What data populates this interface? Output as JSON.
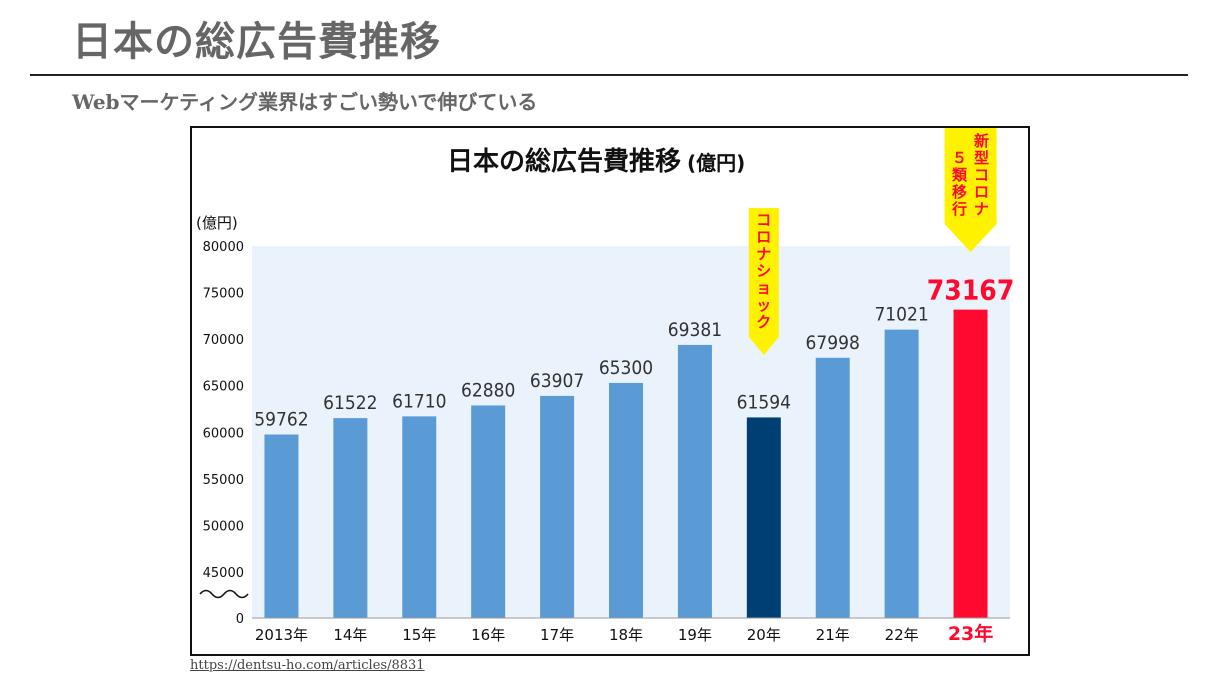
{
  "slide": {
    "title": "日本の総広告費推移",
    "subtitle": "Webマーケティング業界はすごい勢いで伸びている",
    "source": "https://dentsu-ho.com/articles/8831"
  },
  "chart_data": {
    "type": "bar",
    "title": "日本の総広告費推移",
    "title_unit": "(億円)",
    "ylabel": "(億円)",
    "ylim": [
      40000,
      80000
    ],
    "yticks": [
      0,
      45000,
      50000,
      55000,
      60000,
      65000,
      70000,
      75000,
      80000
    ],
    "axis_break": true,
    "categories": [
      "2013年",
      "14年",
      "15年",
      "16年",
      "17年",
      "18年",
      "19年",
      "20年",
      "21年",
      "22年",
      "23年"
    ],
    "series": [
      {
        "values": [
          59762,
          61522,
          61710,
          62880,
          63907,
          65300,
          69381,
          61594,
          67998,
          71021,
          73167
        ]
      }
    ],
    "colors": {
      "default": "#5b9bd5",
      "covid": "#003f73",
      "latest": "#ff0a2e",
      "plot_bg": "#eaf3fc",
      "callout": "#fff200"
    },
    "highlight": {
      "2020": "covid",
      "2023": "latest"
    },
    "annotations": [
      {
        "category_index": 7,
        "text": "コロナショック"
      },
      {
        "category_index": 10,
        "text": "新型コロナ５類移行"
      }
    ]
  }
}
